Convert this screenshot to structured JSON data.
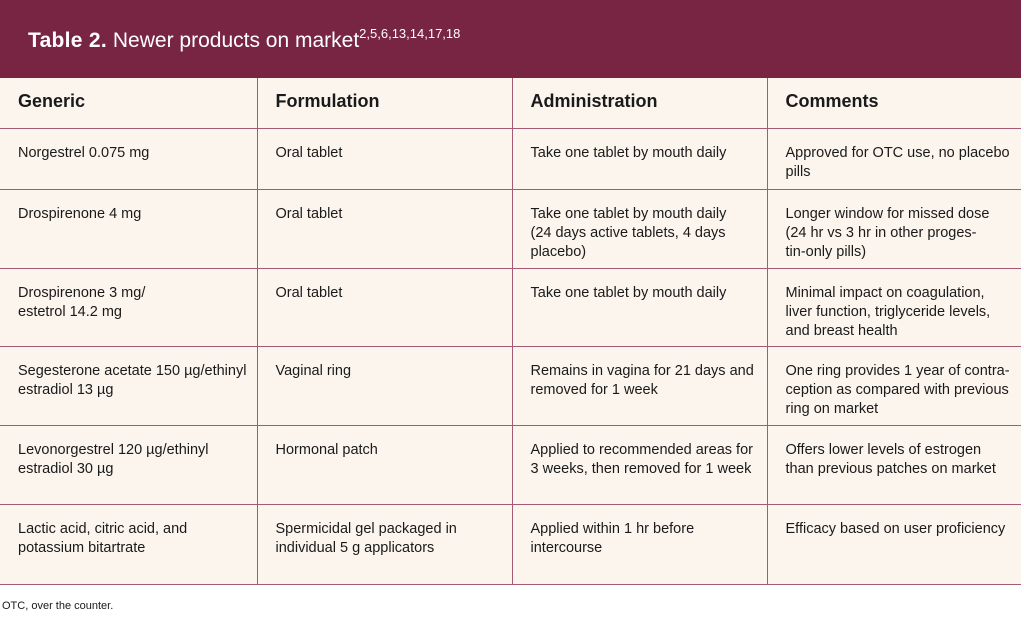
{
  "title": {
    "label": "Table 2.",
    "text": "Newer products on market",
    "refs": "2,5,6,13,14,17,18"
  },
  "colors": {
    "header_bar": "#782443",
    "table_bg": "#fbf5ee",
    "rule": "#a45a73"
  },
  "table": {
    "headers": [
      "Generic",
      "Formulation",
      "Administration",
      "Comments"
    ],
    "rows": [
      [
        "Norgestrel 0.075 mg",
        "Oral tablet",
        "Take one tablet by mouth daily",
        "Approved for OTC use, no placebo\npills"
      ],
      [
        "Drospirenone 4 mg",
        "Oral tablet",
        "Take one tablet by mouth daily\n(24 days active tablets, 4 days\nplacebo)",
        "Longer window for missed dose\n(24 hr vs 3 hr in other proges-\ntin-only pills)"
      ],
      [
        "Drospirenone 3 mg/\nestetrol 14.2 mg",
        "Oral tablet",
        "Take one tablet by mouth daily",
        "Minimal impact on coagulation,\nliver function, triglyceride levels,\nand breast health"
      ],
      [
        "Segesterone acetate 150 µg/ethinyl\nestradiol 13 µg",
        "Vaginal ring",
        "Remains in vagina for 21 days and\nremoved for 1 week",
        "One ring provides 1 year of contra-\nception as compared with previous\nring on market"
      ],
      [
        "Levonorgestrel 120 µg/ethinyl\nestradiol 30 µg",
        "Hormonal patch",
        "Applied to recommended areas for\n3 weeks, then removed for 1 week",
        "Offers lower levels of estrogen\nthan previous patches on market"
      ],
      [
        "Lactic acid, citric acid, and\npotassium bitartrate",
        "Spermicidal gel packaged in\nindividual 5 g applicators",
        "Applied within 1 hr before\nintercourse",
        "Efficacy based on user proficiency"
      ]
    ]
  },
  "footnote": "OTC, over the counter."
}
